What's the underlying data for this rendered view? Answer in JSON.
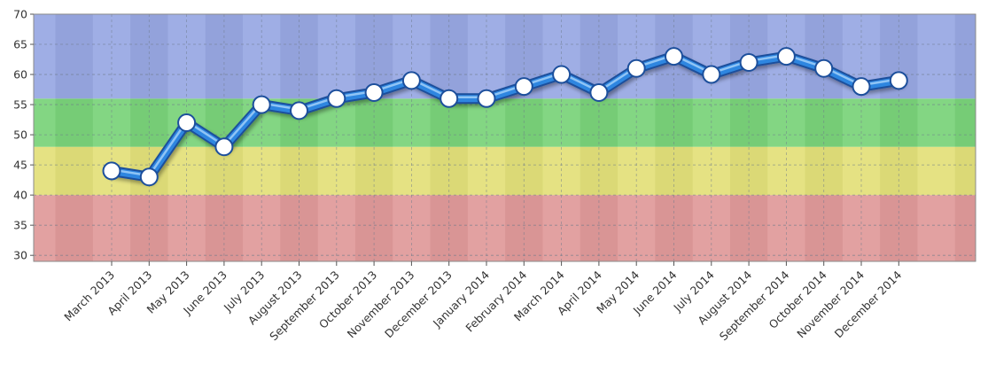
{
  "chart_data": {
    "type": "line",
    "title": "",
    "xlabel": "",
    "ylabel": "",
    "ylim": [
      29,
      70
    ],
    "y_ticks": [
      30,
      35,
      40,
      45,
      50,
      55,
      60,
      65,
      70
    ],
    "grid": true,
    "categories": [
      "March 2013",
      "April 2013",
      "May 2013",
      "June 2013",
      "July 2013",
      "August 2013",
      "September 2013",
      "October 2013",
      "November 2013",
      "December 2013",
      "January 2014",
      "February 2014",
      "March 2014",
      "April 2014",
      "May 2014",
      "June 2014",
      "July 2014",
      "August 2014",
      "September 2014",
      "October 2014",
      "November 2014",
      "December 2014"
    ],
    "series": [
      {
        "values": [
          44,
          43,
          52,
          48,
          55,
          54,
          56,
          57,
          59,
          56,
          56,
          58,
          60,
          57,
          61,
          63,
          60,
          62,
          63,
          61,
          58,
          59
        ]
      }
    ],
    "bands": [
      {
        "from": 29,
        "to": 40,
        "color": "#e09a9a"
      },
      {
        "from": 40,
        "to": 48,
        "color": "#e3e07a"
      },
      {
        "from": 48,
        "to": 56,
        "color": "#7ad37a"
      },
      {
        "from": 56,
        "to": 70,
        "color": "#98a8e3"
      }
    ],
    "line_color": "#2f86e0"
  }
}
